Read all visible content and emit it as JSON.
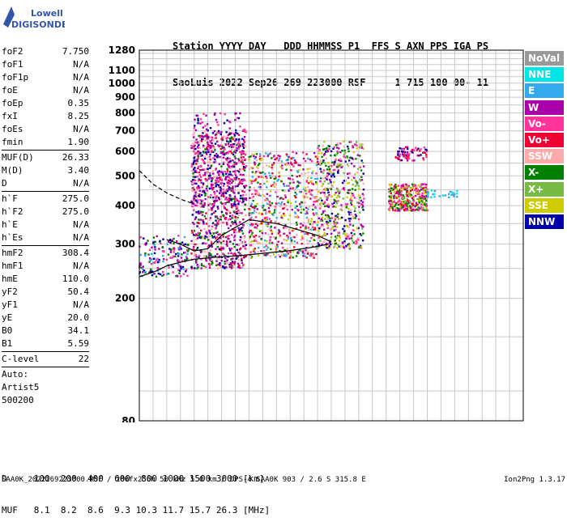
{
  "logo": {
    "line1": "Lowell",
    "line2": "DIGISONDE"
  },
  "header": {
    "line1": "Station YYYY DAY   DDD HHMMSS P1  FFS S AXN PPS IGA PS",
    "line2": "SaoLuis 2022 Sep26 269 223000 RSF     1 715 100 00- 11"
  },
  "params": [
    {
      "name": "foF2",
      "value": "7.750"
    },
    {
      "name": "foF1",
      "value": "N/A"
    },
    {
      "name": "foF1p",
      "value": "N/A"
    },
    {
      "name": "foE",
      "value": "N/A"
    },
    {
      "name": "foEp",
      "value": "0.35"
    },
    {
      "name": "fxI",
      "value": "8.25"
    },
    {
      "name": "foEs",
      "value": "N/A"
    },
    {
      "name": "fmin",
      "value": "1.90"
    },
    {
      "sep": true
    },
    {
      "name": "MUF(D)",
      "value": "26.33"
    },
    {
      "name": "M(D)",
      "value": "3.40"
    },
    {
      "name": "D",
      "value": "N/A"
    },
    {
      "sep": true
    },
    {
      "name": "h`F",
      "value": "275.0"
    },
    {
      "name": "h`F2",
      "value": "275.0"
    },
    {
      "name": "h`E",
      "value": "N/A"
    },
    {
      "name": "h`Es",
      "value": "N/A"
    },
    {
      "sep": true
    },
    {
      "name": "hmF2",
      "value": "308.4"
    },
    {
      "name": "hmF1",
      "value": "N/A"
    },
    {
      "name": "hmE",
      "value": "110.0"
    },
    {
      "name": "yF2",
      "value": "50.4"
    },
    {
      "name": "yF1",
      "value": "N/A"
    },
    {
      "name": "yE",
      "value": "20.0"
    },
    {
      "name": "B0",
      "value": "34.1"
    },
    {
      "name": "B1",
      "value": "5.59"
    },
    {
      "sep": true
    },
    {
      "name": "C-level",
      "value": "22"
    },
    {
      "sep": true
    },
    {
      "text": "Auto:"
    },
    {
      "text": "Artist5"
    },
    {
      "text": "500200"
    }
  ],
  "legend": [
    {
      "label": "NoVal",
      "color": "#999999"
    },
    {
      "label": "NNE",
      "color": "#00e6e6"
    },
    {
      "label": "E",
      "color": "#33aaee"
    },
    {
      "label": "W",
      "color": "#aa00aa"
    },
    {
      "label": "Vo-",
      "color": "#ff3399"
    },
    {
      "label": "Vo+",
      "color": "#ee0033"
    },
    {
      "label": "SSW",
      "color": "#ffaaaa"
    },
    {
      "label": "X-",
      "color": "#008000"
    },
    {
      "label": "X+",
      "color": "#77bb44"
    },
    {
      "label": "SSE",
      "color": "#cccc00"
    },
    {
      "label": "NNW",
      "color": "#0000aa"
    }
  ],
  "bottom": {
    "d_row": "D     100  200  400  600  800 1000 1500 3000 [km]",
    "muf_row": "MUF   8.1  8.2  8.6  9.3 10.3 11.7 15.7 26.3 [MHz]"
  },
  "footer": {
    "left": "SAA0K_2022269223000.RSF / 280fx256h 50 kHz 5.0 km / DPS-4 SAA0K 903 / 2.6 S 315.8 E",
    "right": "Ion2Png 1.3.17"
  },
  "chart_data": {
    "type": "scatter",
    "title": "",
    "xlabel": "",
    "ylabel": "",
    "xlim": [
      1,
      15
    ],
    "ylim": [
      80,
      1280
    ],
    "y_scale": "log",
    "grid": true,
    "x_ticks": [
      1,
      2,
      3,
      4,
      5,
      6,
      7,
      8,
      9,
      10,
      11,
      12,
      13,
      14,
      15
    ],
    "y_ticks": [
      80,
      200,
      300,
      400,
      500,
      600,
      700,
      800,
      900,
      1000,
      1100,
      1280
    ],
    "clusters": [
      {
        "x": [
          1.0,
          2.8
        ],
        "y": [
          235,
          320
        ],
        "count": 180,
        "colors": [
          "#0000aa",
          "#aa00aa",
          "#ff3399",
          "#008000",
          "#33aaee"
        ]
      },
      {
        "x": [
          2.9,
          4.9
        ],
        "y": [
          250,
          700
        ],
        "count": 900,
        "colors": [
          "#aa00aa",
          "#0000aa",
          "#ff3399",
          "#ee0033",
          "#aa00aa",
          "#ffaaaa",
          "#008000"
        ]
      },
      {
        "x": [
          2.9,
          4.9
        ],
        "y": [
          400,
          800
        ],
        "count": 260,
        "colors": [
          "#aa00aa",
          "#0000aa",
          "#ff3399"
        ]
      },
      {
        "x": [
          5.0,
          7.5
        ],
        "y": [
          270,
          600
        ],
        "count": 650,
        "colors": [
          "#ff3399",
          "#ffaaaa",
          "#aa00aa",
          "#008000",
          "#cccc00",
          "#ee0033",
          "#33aaee"
        ]
      },
      {
        "x": [
          7.5,
          9.2
        ],
        "y": [
          290,
          650
        ],
        "count": 520,
        "colors": [
          "#ffaaaa",
          "#ff3399",
          "#aa00aa",
          "#cccc00",
          "#008000",
          "#77bb44",
          "#0000aa"
        ]
      },
      {
        "x": [
          10.1,
          11.5
        ],
        "y": [
          385,
          470
        ],
        "count": 330,
        "colors": [
          "#008000",
          "#cccc00",
          "#77bb44",
          "#aa00aa",
          "#ff3399",
          "#ee0033"
        ]
      },
      {
        "x": [
          10.3,
          11.5
        ],
        "y": [
          560,
          620
        ],
        "count": 70,
        "colors": [
          "#ee0033",
          "#ff3399",
          "#aa00aa",
          "#0000aa"
        ]
      },
      {
        "x": [
          11.5,
          12.6
        ],
        "y": [
          425,
          450
        ],
        "count": 30,
        "colors": [
          "#00e6e6",
          "#33aaee"
        ]
      }
    ],
    "trace_solid": {
      "x": [
        1.0,
        1.6,
        2.0,
        2.5,
        3.0,
        3.8,
        4.6,
        5.5,
        6.5,
        7.3,
        7.9
      ],
      "y": [
        235,
        245,
        255,
        262,
        268,
        272,
        275,
        280,
        286,
        293,
        300
      ]
    },
    "trace_solid2": {
      "x": [
        2.0,
        2.5,
        3.0,
        3.5,
        4.0,
        4.5,
        5.0,
        6.0,
        7.0,
        7.5,
        8.0
      ],
      "y": [
        310,
        300,
        285,
        290,
        320,
        340,
        360,
        350,
        330,
        320,
        305
      ]
    },
    "trace_dashed": {
      "x": [
        1.0,
        1.5,
        2.0,
        2.5,
        3.0
      ],
      "y": [
        520,
        470,
        440,
        420,
        405
      ]
    }
  }
}
